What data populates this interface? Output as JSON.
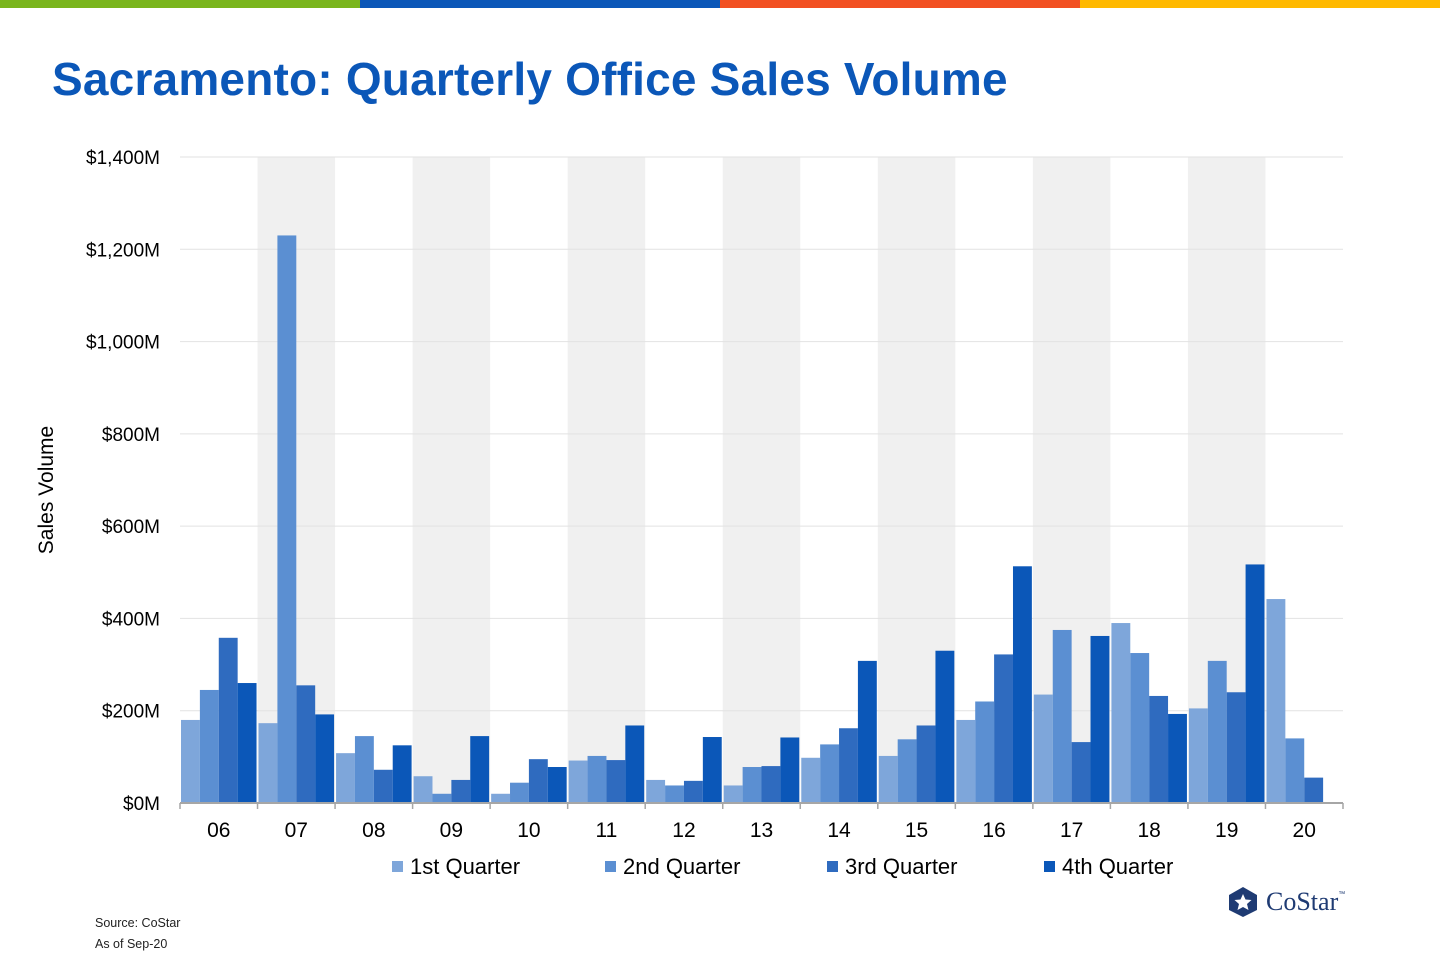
{
  "top_bar_colors": [
    "#7ab51d",
    "#0b57b8",
    "#f25022",
    "#ffb900"
  ],
  "chart_data": {
    "type": "bar",
    "title": "Sacramento: Quarterly Office Sales Volume",
    "ylabel": "Sales Volume",
    "xlabel": "",
    "ylim": [
      0,
      1400
    ],
    "yticks": [
      0,
      200,
      400,
      600,
      800,
      1000,
      1200,
      1400
    ],
    "ytick_labels": [
      "$0M",
      "$200M",
      "$400M",
      "$600M",
      "$800M",
      "$1,000M",
      "$1,200M",
      "$1,400M"
    ],
    "grid": true,
    "categories": [
      "06",
      "07",
      "08",
      "09",
      "10",
      "11",
      "12",
      "13",
      "14",
      "15",
      "16",
      "17",
      "18",
      "19",
      "20"
    ],
    "series": [
      {
        "name": "1st Quarter",
        "color": "#7ea6da",
        "values": [
          180,
          173,
          108,
          58,
          20,
          92,
          50,
          38,
          98,
          102,
          180,
          235,
          390,
          205,
          442
        ]
      },
      {
        "name": "2nd Quarter",
        "color": "#5b8fd2",
        "values": [
          245,
          1230,
          145,
          20,
          44,
          102,
          38,
          78,
          127,
          138,
          220,
          375,
          325,
          308,
          140
        ]
      },
      {
        "name": "3rd Quarter",
        "color": "#2f6bbf",
        "values": [
          358,
          255,
          72,
          50,
          95,
          93,
          48,
          80,
          162,
          168,
          322,
          132,
          232,
          240,
          55
        ]
      },
      {
        "name": "4th Quarter",
        "color": "#0b57b8",
        "values": [
          260,
          192,
          125,
          145,
          78,
          168,
          143,
          142,
          308,
          330,
          513,
          362,
          193,
          517,
          null
        ]
      }
    ],
    "legend": "bottom"
  },
  "footer": {
    "source": "Source: CoStar",
    "as_of": "As of Sep-20"
  },
  "logo": {
    "text": "CoStar",
    "tm": "™"
  }
}
